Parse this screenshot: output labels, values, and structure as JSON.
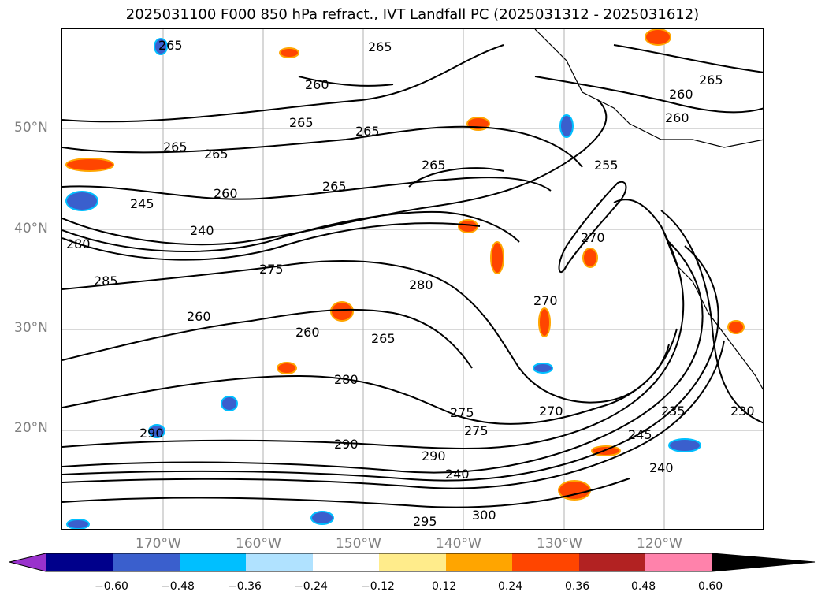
{
  "title": "2025031100 F000 850 hPa refract., IVT Landfall PC (2025031312 - 2025031612)",
  "lat_labels": [
    "50°N",
    "40°N",
    "30°N",
    "20°N"
  ],
  "lon_labels": [
    "170°W",
    "160°W",
    "150°W",
    "140°W",
    "130°W",
    "120°W"
  ],
  "contour_labels": [
    "265",
    "265",
    "260",
    "265",
    "260",
    "265",
    "265",
    "265",
    "265",
    "265",
    "245",
    "260",
    "265",
    "260",
    "240",
    "280",
    "285",
    "275",
    "280",
    "260",
    "255",
    "270",
    "270",
    "260",
    "265",
    "280",
    "275",
    "270",
    "290",
    "290",
    "275",
    "240",
    "245",
    "235",
    "230",
    "240",
    "300",
    "295",
    "290"
  ],
  "colorbar": {
    "ticks": [
      "−0.60",
      "−0.48",
      "−0.36",
      "−0.24",
      "−0.12",
      "0.12",
      "0.24",
      "0.36",
      "0.48",
      "0.60"
    ],
    "colors": [
      "#9932cc",
      "#00008b",
      "#3a5fcd",
      "#00bfff",
      "#b0e2ff",
      "#ffffff",
      "#ffec8b",
      "#ffa500",
      "#ff4500",
      "#b22222",
      "#ff82ab"
    ]
  }
}
